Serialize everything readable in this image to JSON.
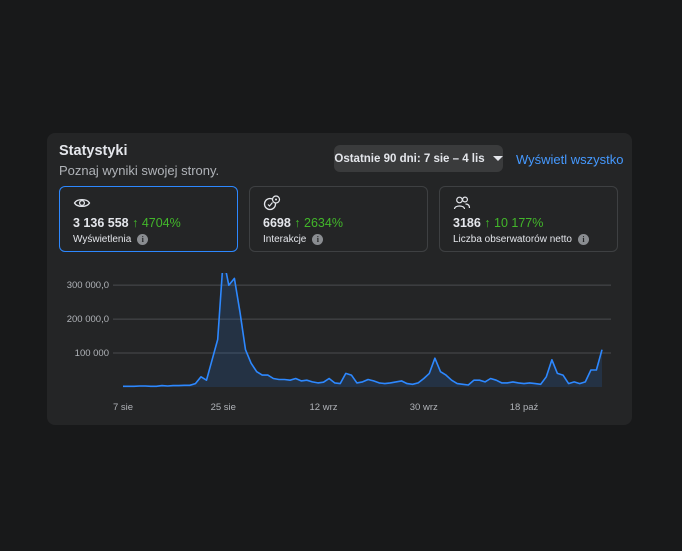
{
  "header": {
    "title": "Statystyki",
    "subtitle": "Poznaj wyniki swojej strony.",
    "range_label": "Ostatnie 90 dni: 7 sie – 4 lis",
    "see_all": "Wyświetl wszystko"
  },
  "metrics": [
    {
      "icon": "eye-icon",
      "value": "3 136 558",
      "change": "↑ 4704%",
      "label": "Wyświetlenia",
      "active": true
    },
    {
      "icon": "interactions-icon",
      "value": "6698",
      "change": "↑ 2634%",
      "label": "Interakcje",
      "active": false
    },
    {
      "icon": "followers-icon",
      "value": "3186",
      "change": "↑ 10 177%",
      "label": "Liczba obserwatorów netto",
      "active": false
    }
  ],
  "info_glyph": "i",
  "colors": {
    "background": "#18191a",
    "card": "#242526",
    "accent": "#2d88ff",
    "link": "#4599ff",
    "positive": "#42b72a",
    "line": "#2d88ff"
  },
  "chart_data": {
    "type": "area",
    "title": "",
    "xlabel": "",
    "ylabel": "",
    "ylim": [
      0,
      330000
    ],
    "yticks": [
      {
        "value": 100000,
        "label": "100 000"
      },
      {
        "value": 200000,
        "label": "200 000,0"
      },
      {
        "value": 300000,
        "label": "300 000,0"
      }
    ],
    "xticks": [
      {
        "index": 0,
        "label": "7 sie"
      },
      {
        "index": 18,
        "label": "25 sie"
      },
      {
        "index": 36,
        "label": "12 wrz"
      },
      {
        "index": 54,
        "label": "30 wrz"
      },
      {
        "index": 72,
        "label": "18 paź"
      }
    ],
    "grid": true,
    "series": [
      {
        "values": [
          2000,
          2000,
          2000,
          3000,
          3000,
          2000,
          2000,
          4000,
          3000,
          4000,
          4000,
          5000,
          5000,
          10000,
          30000,
          20000,
          80000,
          140000,
          380000,
          300000,
          320000,
          220000,
          110000,
          70000,
          45000,
          35000,
          35000,
          25000,
          22000,
          22000,
          20000,
          25000,
          18000,
          20000,
          15000,
          12000,
          14000,
          25000,
          12000,
          10000,
          40000,
          35000,
          12000,
          15000,
          22000,
          18000,
          12000,
          10000,
          12000,
          15000,
          18000,
          10000,
          8000,
          12000,
          25000,
          40000,
          85000,
          45000,
          35000,
          20000,
          10000,
          8000,
          6000,
          20000,
          20000,
          15000,
          25000,
          20000,
          12000,
          12000,
          15000,
          12000,
          10000,
          12000,
          10000,
          8000,
          30000,
          80000,
          40000,
          35000,
          10000,
          15000,
          10000,
          15000,
          50000,
          50000,
          110000
        ]
      }
    ]
  }
}
